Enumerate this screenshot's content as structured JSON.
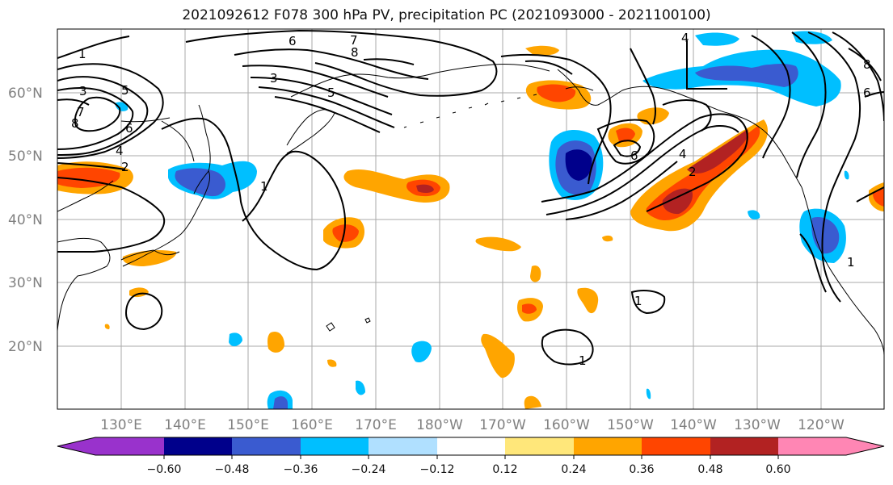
{
  "title": "2021092612 F078 300 hPa PV, precipitation PC (2021093000 - 2021100100)",
  "map": {
    "lat_labels": [
      "60°N",
      "50°N",
      "40°N",
      "30°N",
      "20°N"
    ],
    "lon_labels": [
      "130°E",
      "140°E",
      "150°E",
      "160°E",
      "170°E",
      "180°W",
      "170°W",
      "160°W",
      "150°W",
      "140°W",
      "130°W",
      "120°W"
    ],
    "contour_labels": [
      "1",
      "3",
      "5",
      "7",
      "8",
      "6",
      "4",
      "2",
      "6",
      "7",
      "8",
      "3",
      "5",
      "1",
      "1",
      "6",
      "4",
      "2",
      "1",
      "1",
      "4",
      "8",
      "6"
    ]
  },
  "colorbar": {
    "tick_labels": [
      "−0.60",
      "−0.48",
      "−0.36",
      "−0.24",
      "−0.12",
      "0.12",
      "0.24",
      "0.36",
      "0.48",
      "0.60"
    ],
    "colors": [
      "#9932cc",
      "#00008b",
      "#3a5bd0",
      "#00bfff",
      "#b0e0ff",
      "#ffffff",
      "#ffe77a",
      "#ffa500",
      "#ff4500",
      "#b22222",
      "#ff86b4"
    ]
  },
  "colors": {
    "neg_strong": "#00008b",
    "neg_mid": "#3a5bd0",
    "neg_light": "#00bfff",
    "pos_light": "#ffa500",
    "pos_mid": "#ff4500",
    "pos_strong": "#b22222"
  }
}
